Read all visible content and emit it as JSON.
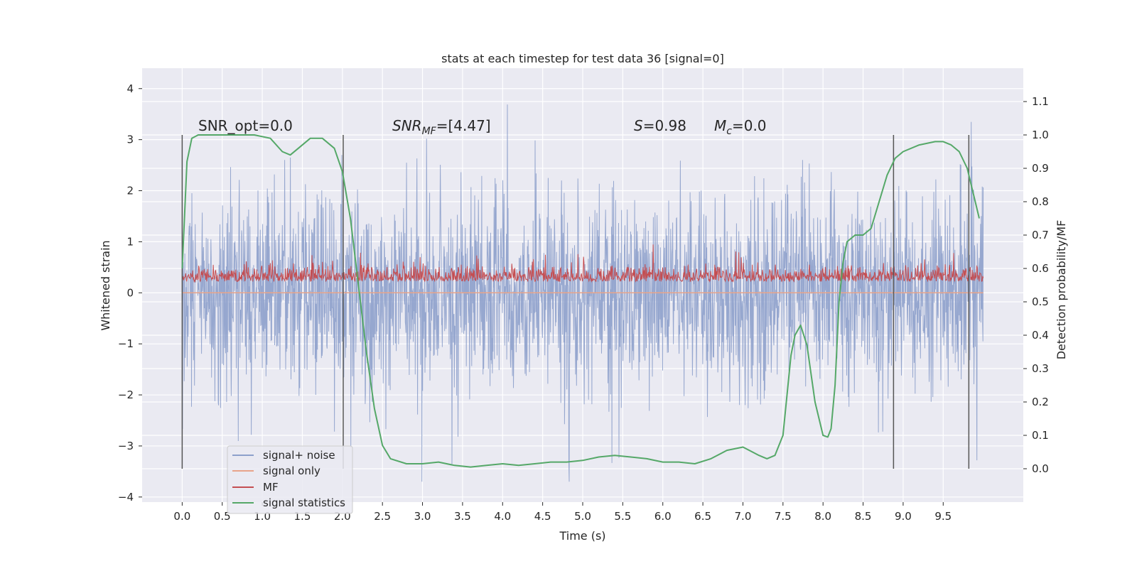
{
  "chart_data": {
    "type": "line",
    "title": "stats at each timestep for test data 36 [signal=0]",
    "xlabel": "Time (s)",
    "ylabel": "Whitened strain",
    "y2label": "Detection probability/MF",
    "xlim": [
      -0.5,
      10.5
    ],
    "ylim": [
      -4.1,
      4.4
    ],
    "y2lim": [
      -0.1,
      1.2
    ],
    "x_ticks": [
      0.0,
      0.5,
      1.0,
      1.5,
      2.0,
      2.5,
      3.0,
      3.5,
      4.0,
      4.5,
      5.0,
      5.5,
      6.0,
      6.5,
      7.0,
      7.5,
      8.0,
      8.5,
      9.0,
      9.5
    ],
    "x_tick_labels": [
      "0.0",
      "0.5",
      "1.0",
      "1.5",
      "2.0",
      "2.5",
      "3.0",
      "3.5",
      "4.0",
      "4.5",
      "5.0",
      "5.5",
      "6.0",
      "6.5",
      "7.0",
      "7.5",
      "8.0",
      "8.5",
      "9.0",
      "9.5"
    ],
    "y_ticks": [
      4,
      3,
      2,
      1,
      0,
      -1,
      -2,
      -3,
      -4
    ],
    "y_tick_labels": [
      "4",
      "3",
      "2",
      "1",
      "0",
      "−1",
      "−2",
      "−3",
      "−4"
    ],
    "y2_ticks": [
      1.1,
      1.0,
      0.9,
      0.8,
      0.7,
      0.6,
      0.5,
      0.4,
      0.3,
      0.2,
      0.1,
      0.0
    ],
    "y2_tick_labels": [
      "1.1",
      "1.0",
      "0.9",
      "0.8",
      "0.7",
      "0.6",
      "0.5",
      "0.4",
      "0.3",
      "0.2",
      "0.1",
      "0.0"
    ],
    "grid": true,
    "legend_position": "lower-left",
    "annotations": {
      "snr_opt": "SNR_opt=0.0",
      "snr_mf_main": "SNR",
      "snr_mf_sub": "MF",
      "snr_mf_value": "=[4.47]",
      "s_main": "S",
      "s_value": "=0.98",
      "mc_main": "M",
      "mc_sub": "c",
      "mc_value": "=0.0"
    },
    "vertical_lines_x": [
      0.0,
      2.01,
      8.88,
      9.82
    ],
    "series": [
      {
        "name": "signal+ noise",
        "axis": "left",
        "color": "#8da0cb",
        "x_range": [
          0.0,
          10.0
        ],
        "approx_envelope": [
          -2.0,
          2.0
        ],
        "approx_extremes": [
          -3.7,
          4.05
        ]
      },
      {
        "name": "signal only",
        "axis": "left",
        "color": "#e8a48a",
        "x": [
          0.0,
          10.0
        ],
        "y": [
          0.0,
          0.0
        ]
      },
      {
        "name": "MF",
        "axis": "left",
        "color": "#c44e52",
        "x_range": [
          0.0,
          10.0
        ],
        "approx_envelope": [
          0.0,
          0.65
        ],
        "approx_extremes": [
          0.0,
          1.0
        ]
      },
      {
        "name": "signal statistics",
        "axis": "right",
        "color": "#55a868",
        "x": [
          0.0,
          0.06,
          0.12,
          0.2,
          0.35,
          0.6,
          0.9,
          1.1,
          1.25,
          1.35,
          1.45,
          1.6,
          1.75,
          1.9,
          2.0,
          2.1,
          2.2,
          2.3,
          2.4,
          2.5,
          2.6,
          2.8,
          3.0,
          3.2,
          3.4,
          3.6,
          3.8,
          4.0,
          4.2,
          4.4,
          4.6,
          4.8,
          5.0,
          5.2,
          5.4,
          5.6,
          5.8,
          6.0,
          6.2,
          6.4,
          6.6,
          6.8,
          7.0,
          7.2,
          7.3,
          7.4,
          7.5,
          7.6,
          7.65,
          7.72,
          7.8,
          7.9,
          8.0,
          8.06,
          8.1,
          8.15,
          8.2,
          8.25,
          8.3,
          8.4,
          8.5,
          8.6,
          8.7,
          8.8,
          8.9,
          9.0,
          9.2,
          9.4,
          9.5,
          9.6,
          9.7,
          9.8,
          9.85,
          9.9,
          9.95
        ],
        "y": [
          0.6,
          0.92,
          0.99,
          1.0,
          1.0,
          1.0,
          1.0,
          0.99,
          0.95,
          0.94,
          0.96,
          0.99,
          0.99,
          0.96,
          0.89,
          0.75,
          0.55,
          0.35,
          0.18,
          0.07,
          0.03,
          0.015,
          0.015,
          0.02,
          0.01,
          0.005,
          0.01,
          0.015,
          0.01,
          0.015,
          0.02,
          0.02,
          0.025,
          0.035,
          0.04,
          0.035,
          0.03,
          0.02,
          0.02,
          0.015,
          0.03,
          0.055,
          0.065,
          0.04,
          0.03,
          0.04,
          0.1,
          0.34,
          0.4,
          0.43,
          0.37,
          0.2,
          0.1,
          0.095,
          0.12,
          0.25,
          0.5,
          0.62,
          0.68,
          0.7,
          0.7,
          0.72,
          0.8,
          0.88,
          0.93,
          0.95,
          0.97,
          0.98,
          0.98,
          0.97,
          0.95,
          0.9,
          0.85,
          0.8,
          0.75
        ]
      }
    ]
  }
}
